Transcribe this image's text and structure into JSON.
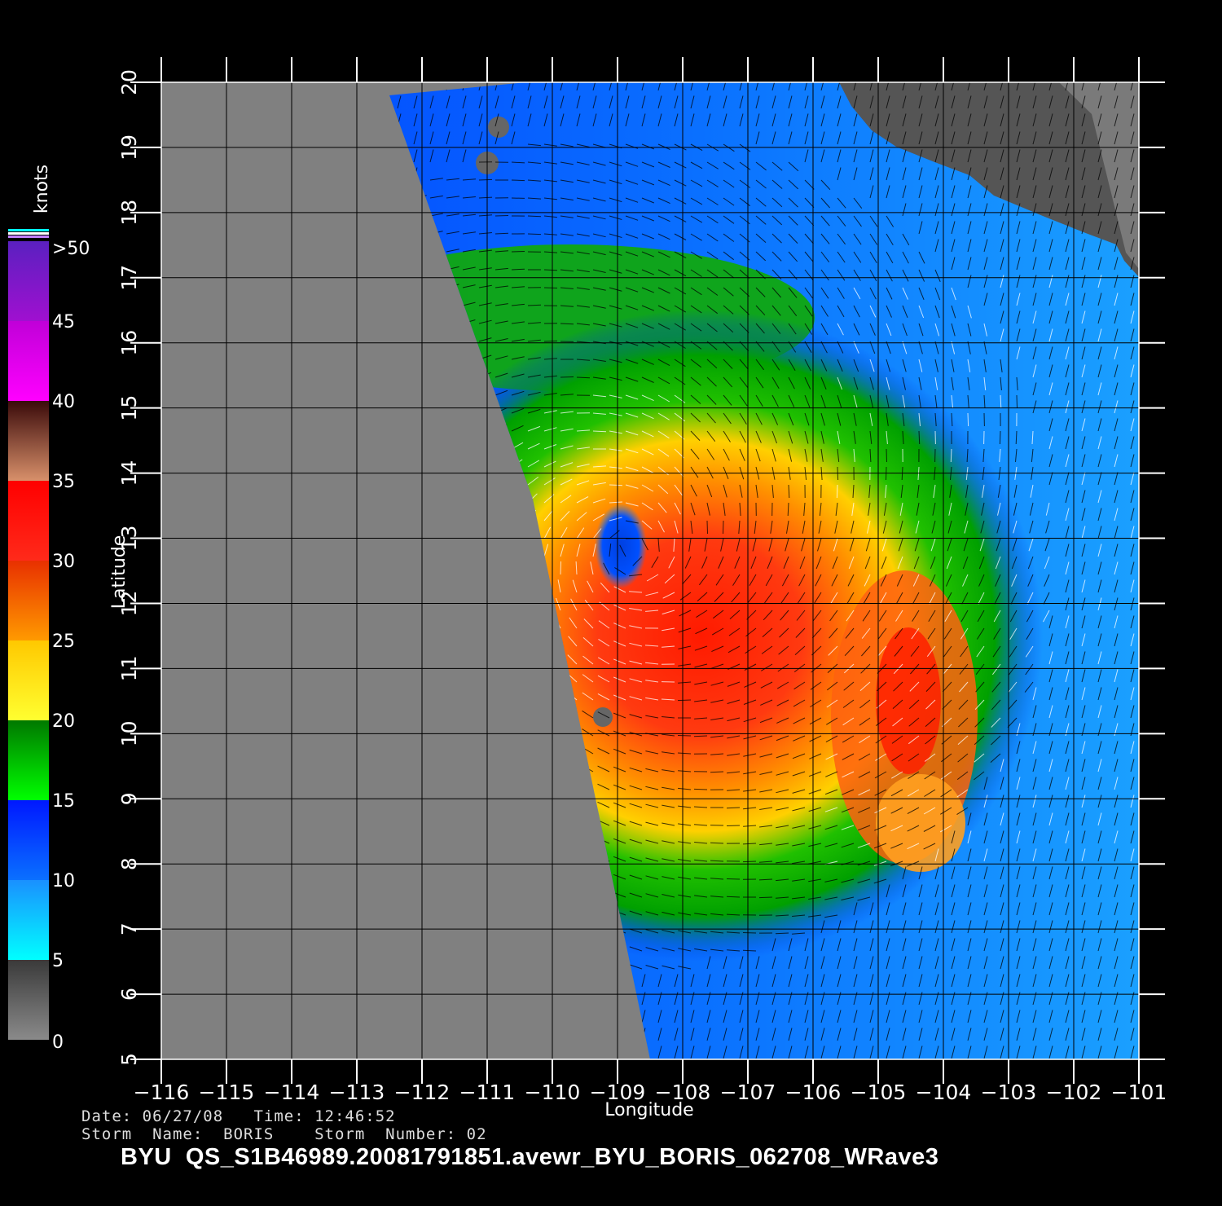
{
  "map": {
    "x_label": "Longitude",
    "y_label": "Latitude",
    "lon_range": [
      -116,
      -101
    ],
    "lat_range": [
      5,
      20
    ],
    "lon_ticks": [
      "−116",
      "−115",
      "−114",
      "−113",
      "−112",
      "−111",
      "−110",
      "−109",
      "−108",
      "−107",
      "−106",
      "−105",
      "−104",
      "−103",
      "−102",
      "−101"
    ],
    "lat_ticks": [
      "5",
      "6",
      "7",
      "8",
      "9",
      "10",
      "11",
      "12",
      "13",
      "14",
      "15",
      "16",
      "17",
      "18",
      "19",
      "20"
    ],
    "storm_center": {
      "lon": -108.8,
      "lat": 12.8
    },
    "land_color": "#555555",
    "no_data_color": "#808080"
  },
  "colorbar": {
    "title": "knots",
    "labels": [
      {
        "text": ">50",
        "value": 50
      },
      {
        "text": "45",
        "value": 45
      },
      {
        "text": "40",
        "value": 40
      },
      {
        "text": "35",
        "value": 35
      },
      {
        "text": "30",
        "value": 30
      },
      {
        "text": "25",
        "value": 25
      },
      {
        "text": "20",
        "value": 20
      },
      {
        "text": "15",
        "value": 15
      },
      {
        "text": "10",
        "value": 10
      },
      {
        "text": "5",
        "value": 5
      },
      {
        "text": "0",
        "value": 0
      }
    ],
    "bands": [
      {
        "from": 0,
        "to": 5,
        "top": "#3a3a3a",
        "bottom": "#8a8a8a"
      },
      {
        "from": 5,
        "to": 10,
        "top": "#1a90ff",
        "bottom": "#00ffff"
      },
      {
        "from": 10,
        "to": 15,
        "top": "#0018ff",
        "bottom": "#0a70ff"
      },
      {
        "from": 15,
        "to": 20,
        "top": "#007800",
        "bottom": "#00ff00"
      },
      {
        "from": 20,
        "to": 25,
        "top": "#ffc800",
        "bottom": "#ffff30"
      },
      {
        "from": 25,
        "to": 30,
        "top": "#e83000",
        "bottom": "#ff9a00"
      },
      {
        "from": 30,
        "to": 35,
        "top": "#ff0000",
        "bottom": "#ff2a1a"
      },
      {
        "from": 35,
        "to": 40,
        "top": "#3a0a0a",
        "bottom": "#d8906a"
      },
      {
        "from": 40,
        "to": 45,
        "top": "#c000d8",
        "bottom": "#ff00ff"
      },
      {
        "from": 45,
        "to": 50,
        "top": "#5a20c0",
        "bottom": "#a010d0"
      }
    ]
  },
  "meta": {
    "date_line": "Date: 06/27/08   Time: 12:46:52",
    "storm_line": "Storm  Name:  BORIS    Storm  Number: 02",
    "filename": "BYU  QS_S1B46989.20081791851.avewr_BYU_BORIS_062708_WRave3"
  }
}
